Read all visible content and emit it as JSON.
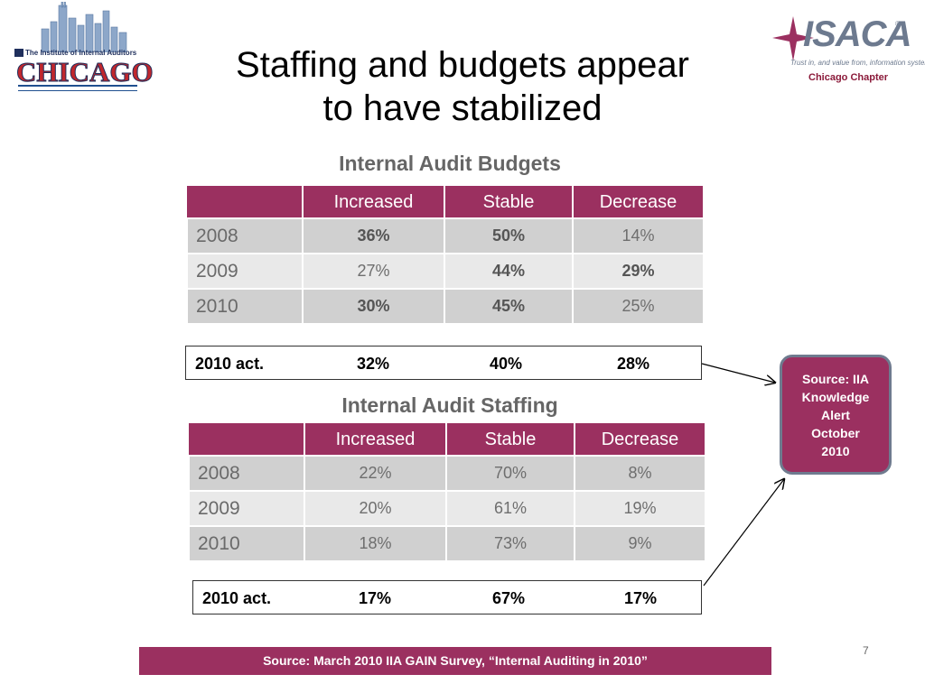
{
  "logos": {
    "left": {
      "org_line": "The Institute of Internal Auditors",
      "city": "CHICAGO"
    },
    "right": {
      "brand": "ISACA",
      "registered": "®",
      "tagline": "Trust in, and value from, information systems",
      "chapter": "Chicago Chapter"
    }
  },
  "title": {
    "line1": "Staffing and budgets appear",
    "line2": "to have stabilized"
  },
  "budgets": {
    "heading": "Internal Audit Budgets",
    "columns": [
      "",
      "Increased",
      "Stable",
      "Decrease"
    ],
    "rows": [
      {
        "year": "2008",
        "increased": "36%",
        "stable": "50%",
        "decrease": "14%"
      },
      {
        "year": "2009",
        "increased": "27%",
        "stable": "44%",
        "decrease": "29%"
      },
      {
        "year": "2010",
        "increased": "30%",
        "stable": "45%",
        "decrease": "25%"
      }
    ],
    "actual": {
      "label": "2010 act.",
      "increased": "32%",
      "stable": "40%",
      "decrease": "28%"
    }
  },
  "staffing": {
    "heading": "Internal Audit Staffing",
    "columns": [
      "",
      "Increased",
      "Stable",
      "Decrease"
    ],
    "rows": [
      {
        "year": "2008",
        "increased": "22%",
        "stable": "70%",
        "decrease": "8%"
      },
      {
        "year": "2009",
        "increased": "20%",
        "stable": "61%",
        "decrease": "19%"
      },
      {
        "year": "2010",
        "increased": "18%",
        "stable": "73%",
        "decrease": "9%"
      }
    ],
    "actual": {
      "label": "2010 act.",
      "increased": "17%",
      "stable": "67%",
      "decrease": "17%"
    }
  },
  "callout": {
    "lines": [
      "Source: IIA",
      "Knowledge",
      "Alert",
      "October",
      "2010"
    ]
  },
  "footer": {
    "source": "Source: March 2010 IIA GAIN Survey, “Internal Auditing in 2010”"
  },
  "page_number": "7",
  "colors": {
    "accent": "#9b3060",
    "row_dark": "#d0d0d0",
    "row_light": "#e9e9e9",
    "heading_gray": "#666666"
  }
}
